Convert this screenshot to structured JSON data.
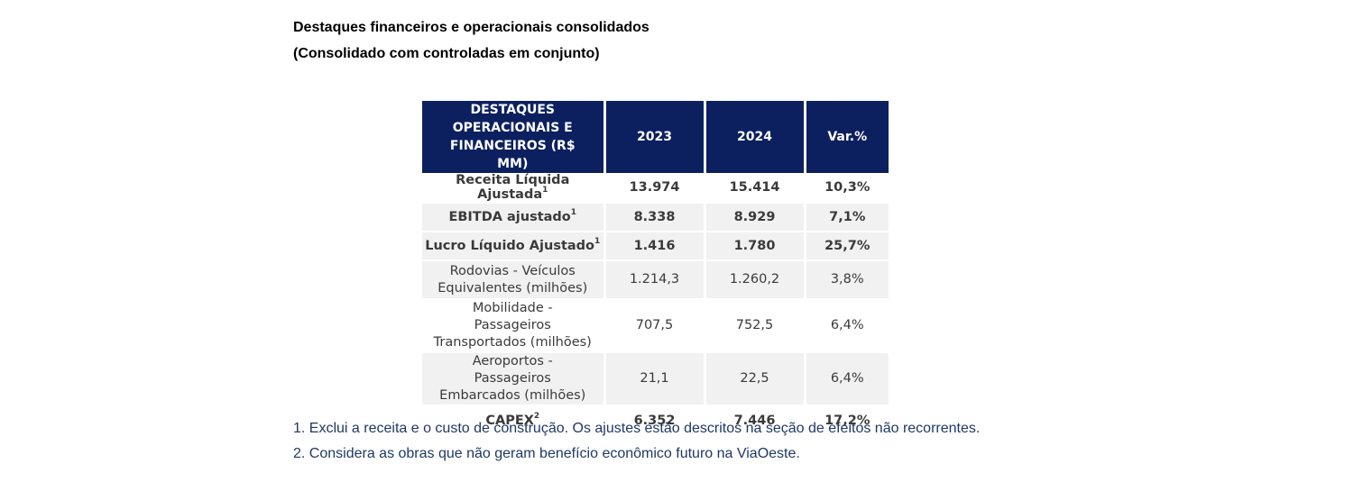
{
  "heading": {
    "line1": "Destaques financeiros e operacionais consolidados",
    "line2": "(Consolidado com controladas em conjunto)"
  },
  "table": {
    "headers": [
      "DESTAQUES OPERACIONAIS E FINANCEIROS (R$ MM)",
      "2023",
      "2024",
      "Var.%"
    ],
    "rows": [
      {
        "label": "Receita Líquida Ajustada",
        "sup": "1",
        "v2023": "13.974",
        "v2024": "15.414",
        "var": "10,3%"
      },
      {
        "label": "EBITDA ajustado",
        "sup": "1",
        "v2023": "8.338",
        "v2024": "8.929",
        "var": "7,1%"
      },
      {
        "label": "Lucro Líquido Ajustado",
        "sup": "1",
        "v2023": "1.416",
        "v2024": "1.780",
        "var": "25,7%"
      },
      {
        "label": "Rodovias - Veículos Equivalentes (milhões)",
        "v2023": "1.214,3",
        "v2024": "1.260,2",
        "var": "3,8%"
      },
      {
        "label": "Mobilidade - Passageiros Transportados (milhões)",
        "v2023": "707,5",
        "v2024": "752,5",
        "var": "6,4%"
      },
      {
        "label": "Aeroportos - Passageiros Embarcados (milhões)",
        "v2023": "21,1",
        "v2024": "22,5",
        "var": "6,4%"
      },
      {
        "label": "CAPEX",
        "sup": "2",
        "v2023": "6.352",
        "v2024": "7.446",
        "var": "17,2%"
      }
    ]
  },
  "footnotes": [
    "1. Exclui a receita e o custo de construção. Os ajustes estão descritos na seção de efeitos não recorrentes.",
    "2. Considera as obras que não geram benefício econômico futuro na ViaOeste."
  ]
}
